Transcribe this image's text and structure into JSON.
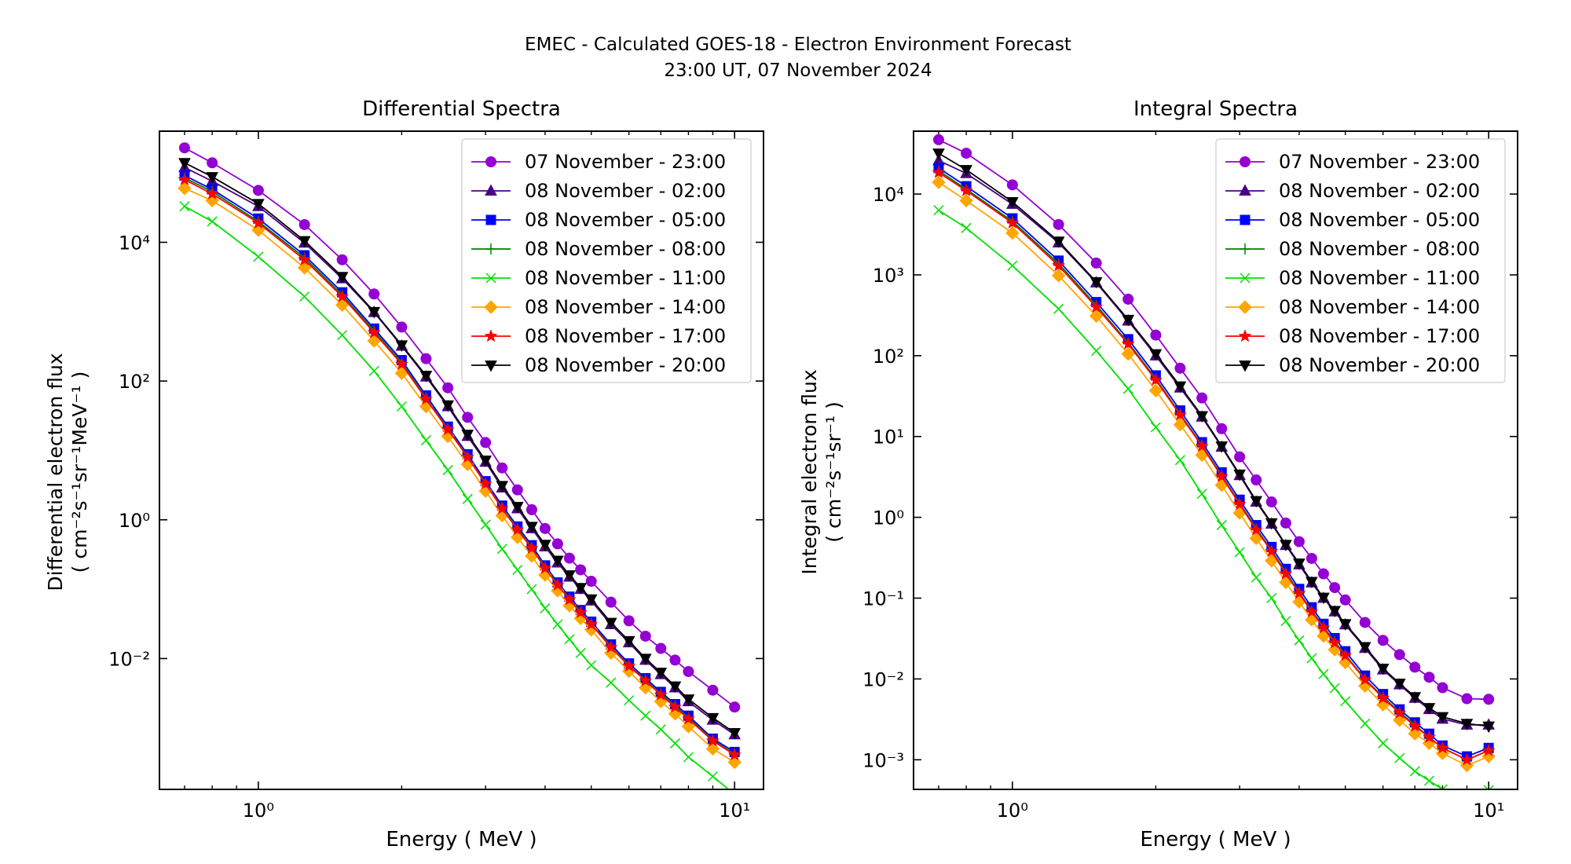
{
  "figure": {
    "title_line1": "EMEC - Calculated GOES-18 - Electron Environment Forecast",
    "title_line2": "23:00 UT, 07 November 2024"
  },
  "series_styles": [
    {
      "name": "07 November - 23:00",
      "color": "#9400d3",
      "marker": "circle"
    },
    {
      "name": "08 November - 02:00",
      "color": "#4b0082",
      "marker": "triangle-up"
    },
    {
      "name": "08 November - 05:00",
      "color": "#0000ff",
      "marker": "square"
    },
    {
      "name": "08 November - 08:00",
      "color": "#008000",
      "marker": "plus"
    },
    {
      "name": "08 November - 11:00",
      "color": "#00e000",
      "marker": "x"
    },
    {
      "name": "08 November - 14:00",
      "color": "#ffa500",
      "marker": "diamond"
    },
    {
      "name": "08 November - 17:00",
      "color": "#ff0000",
      "marker": "star"
    },
    {
      "name": "08 November - 20:00",
      "color": "#000000",
      "marker": "triangle-down"
    }
  ],
  "chart_data": [
    {
      "type": "line",
      "title": "Differential Spectra",
      "xlabel": "Energy ( MeV )",
      "ylabel": "Differential electron flux",
      "ylabel2": "( cm⁻²s⁻¹sr⁻¹MeV⁻¹ )",
      "xscale": "log",
      "yscale": "log",
      "xlim": [
        0.62,
        11.5
      ],
      "ylim": [
        0.00013,
        400000
      ],
      "xticks": [
        {
          "value": 1,
          "label": "10⁰"
        },
        {
          "value": 10,
          "label": "10¹"
        }
      ],
      "yticks": [
        {
          "value": 0.01,
          "label": "10⁻²"
        },
        {
          "value": 1,
          "label": "10⁰"
        },
        {
          "value": 100,
          "label": "10²"
        },
        {
          "value": 10000,
          "label": "10⁴"
        }
      ],
      "legend_position": "top-right",
      "x": [
        0.7,
        0.8,
        1.0,
        1.25,
        1.5,
        1.75,
        2.0,
        2.25,
        2.5,
        2.75,
        3.0,
        3.25,
        3.5,
        3.75,
        4.0,
        4.25,
        4.5,
        4.75,
        5.0,
        5.5,
        6.0,
        6.5,
        7.0,
        7.5,
        8.0,
        9.0,
        10.0
      ],
      "series": [
        {
          "name": "07 November - 23:00",
          "values": [
            230000,
            140000,
            56000,
            18000,
            5600,
            1800,
            600,
            210,
            80,
            30,
            13,
            5.6,
            2.7,
            1.4,
            0.75,
            0.45,
            0.28,
            0.19,
            0.13,
            0.065,
            0.035,
            0.021,
            0.014,
            0.0095,
            0.0065,
            0.0035,
            0.002
          ]
        },
        {
          "name": "08 November - 02:00",
          "values": [
            120000,
            76000,
            33000,
            9800,
            3000,
            980,
            320,
            115,
            43,
            16,
            6.8,
            2.9,
            1.45,
            0.75,
            0.41,
            0.24,
            0.15,
            0.1,
            0.068,
            0.031,
            0.017,
            0.0095,
            0.0059,
            0.0038,
            0.0024,
            0.0013,
            0.0008
          ]
        },
        {
          "name": "08 November - 05:00",
          "values": [
            92000,
            58000,
            22000,
            6500,
            1900,
            570,
            200,
            62,
            22,
            8.8,
            3.6,
            1.6,
            0.8,
            0.43,
            0.22,
            0.125,
            0.078,
            0.05,
            0.034,
            0.016,
            0.0085,
            0.0052,
            0.0033,
            0.0022,
            0.0015,
            0.0007,
            0.00045
          ]
        },
        {
          "name": "08 November - 08:00",
          "values": [
            85000,
            54000,
            20000,
            6000,
            1750,
            530,
            185,
            57,
            20.5,
            8.2,
            3.35,
            1.5,
            0.75,
            0.4,
            0.21,
            0.118,
            0.073,
            0.047,
            0.032,
            0.015,
            0.008,
            0.0049,
            0.0031,
            0.0021,
            0.0014,
            0.00067,
            0.00042
          ]
        },
        {
          "name": "08 November - 11:00",
          "values": [
            33000,
            20000,
            6200,
            1650,
            460,
            140,
            43,
            14,
            5.2,
            2.0,
            0.85,
            0.38,
            0.19,
            0.1,
            0.053,
            0.031,
            0.019,
            0.012,
            0.008,
            0.0045,
            0.0025,
            0.0015,
            0.00095,
            0.0006,
            0.00038,
            0.0002,
            0.00011
          ]
        },
        {
          "name": "08 November - 14:00",
          "values": [
            60000,
            40000,
            15000,
            4300,
            1250,
            380,
            130,
            43,
            16,
            6.3,
            2.6,
            1.15,
            0.56,
            0.3,
            0.16,
            0.095,
            0.058,
            0.038,
            0.026,
            0.012,
            0.0066,
            0.0038,
            0.0024,
            0.0016,
            0.00105,
            0.0005,
            0.00032
          ]
        },
        {
          "name": "08 November - 17:00",
          "values": [
            80000,
            50000,
            19000,
            5600,
            1650,
            500,
            175,
            55,
            20,
            8,
            3.3,
            1.45,
            0.72,
            0.39,
            0.2,
            0.115,
            0.071,
            0.046,
            0.031,
            0.0145,
            0.0078,
            0.0048,
            0.003,
            0.002,
            0.00135,
            0.00065,
            0.00041
          ]
        },
        {
          "name": "08 November - 20:00",
          "values": [
            140000,
            88000,
            36000,
            10500,
            3200,
            1000,
            330,
            120,
            45,
            17,
            7.2,
            3.1,
            1.55,
            0.8,
            0.44,
            0.26,
            0.16,
            0.105,
            0.072,
            0.033,
            0.018,
            0.01,
            0.0063,
            0.004,
            0.0026,
            0.0014,
            0.00085
          ]
        }
      ]
    },
    {
      "type": "line",
      "title": "Integral Spectra",
      "xlabel": "Energy ( MeV )",
      "ylabel": "Integral electron flux",
      "ylabel2": "( cm⁻²s⁻¹sr⁻¹ )",
      "xscale": "log",
      "yscale": "log",
      "xlim": [
        0.62,
        11.5
      ],
      "ylim": [
        0.00043,
        60000
      ],
      "xticks": [
        {
          "value": 1,
          "label": "10⁰"
        },
        {
          "value": 10,
          "label": "10¹"
        }
      ],
      "yticks": [
        {
          "value": 0.001,
          "label": "10⁻³"
        },
        {
          "value": 0.01,
          "label": "10⁻²"
        },
        {
          "value": 0.1,
          "label": "10⁻¹"
        },
        {
          "value": 1,
          "label": "10⁰"
        },
        {
          "value": 10,
          "label": "10¹"
        },
        {
          "value": 100,
          "label": "10²"
        },
        {
          "value": 1000,
          "label": "10³"
        },
        {
          "value": 10000,
          "label": "10⁴"
        }
      ],
      "legend_position": "top-right",
      "x": [
        0.7,
        0.8,
        1.0,
        1.25,
        1.5,
        1.75,
        2.0,
        2.25,
        2.5,
        2.75,
        3.0,
        3.25,
        3.5,
        3.75,
        4.0,
        4.25,
        4.5,
        4.75,
        5.0,
        5.5,
        6.0,
        6.5,
        7.0,
        7.5,
        8.0,
        9.0,
        10.0
      ],
      "series": [
        {
          "name": "07 November - 23:00",
          "values": [
            47000,
            32000,
            13000,
            4200,
            1400,
            500,
            180,
            70,
            30,
            12.5,
            5.6,
            2.9,
            1.55,
            0.85,
            0.5,
            0.31,
            0.2,
            0.135,
            0.095,
            0.05,
            0.03,
            0.02,
            0.014,
            0.0105,
            0.0078,
            0.0057,
            0.0056
          ]
        },
        {
          "name": "08 November - 02:00",
          "values": [
            26000,
            18000,
            7500,
            2500,
            800,
            270,
            100,
            40,
            17.5,
            7.4,
            3.3,
            1.55,
            0.83,
            0.45,
            0.26,
            0.155,
            0.1,
            0.068,
            0.047,
            0.024,
            0.013,
            0.0085,
            0.0058,
            0.0042,
            0.0032,
            0.0027,
            0.0027
          ]
        },
        {
          "name": "08 November - 05:00",
          "values": [
            21000,
            12500,
            5000,
            1500,
            460,
            160,
            57,
            21,
            8.5,
            3.6,
            1.65,
            0.8,
            0.43,
            0.23,
            0.13,
            0.077,
            0.048,
            0.032,
            0.022,
            0.011,
            0.0065,
            0.0042,
            0.0029,
            0.0021,
            0.0015,
            0.0011,
            0.0014
          ]
        },
        {
          "name": "08 November - 08:00",
          "values": [
            19500,
            11500,
            4600,
            1380,
            420,
            145,
            52,
            19,
            7.8,
            3.3,
            1.5,
            0.73,
            0.39,
            0.21,
            0.118,
            0.07,
            0.044,
            0.029,
            0.02,
            0.01,
            0.006,
            0.0039,
            0.0027,
            0.0019,
            0.0014,
            0.001,
            0.0013
          ]
        },
        {
          "name": "08 November - 11:00",
          "values": [
            6300,
            3800,
            1300,
            380,
            115,
            39,
            13,
            5.1,
            1.95,
            0.8,
            0.37,
            0.18,
            0.1,
            0.052,
            0.03,
            0.018,
            0.0115,
            0.0077,
            0.0053,
            0.0028,
            0.0016,
            0.00105,
            0.00072,
            0.00055,
            0.00043,
            0.00033,
            0.00042
          ]
        },
        {
          "name": "08 November - 14:00",
          "values": [
            14000,
            8300,
            3300,
            980,
            310,
            105,
            37,
            14,
            5.9,
            2.5,
            1.13,
            0.55,
            0.29,
            0.157,
            0.09,
            0.054,
            0.034,
            0.023,
            0.016,
            0.0082,
            0.0048,
            0.0031,
            0.0021,
            0.0016,
            0.0012,
            0.00085,
            0.0011
          ]
        },
        {
          "name": "08 November - 17:00",
          "values": [
            18500,
            11000,
            4400,
            1300,
            400,
            140,
            50,
            18.5,
            7.6,
            3.2,
            1.45,
            0.7,
            0.38,
            0.2,
            0.115,
            0.068,
            0.043,
            0.028,
            0.0195,
            0.0098,
            0.0058,
            0.0038,
            0.0026,
            0.0019,
            0.0014,
            0.001,
            0.0013
          ]
        },
        {
          "name": "08 November - 20:00",
          "values": [
            32000,
            20000,
            8000,
            2600,
            820,
            280,
            105,
            42,
            18,
            7.6,
            3.4,
            1.6,
            0.85,
            0.46,
            0.27,
            0.16,
            0.102,
            0.07,
            0.048,
            0.025,
            0.0135,
            0.0088,
            0.006,
            0.0044,
            0.0034,
            0.0028,
            0.0026
          ]
        }
      ]
    }
  ]
}
